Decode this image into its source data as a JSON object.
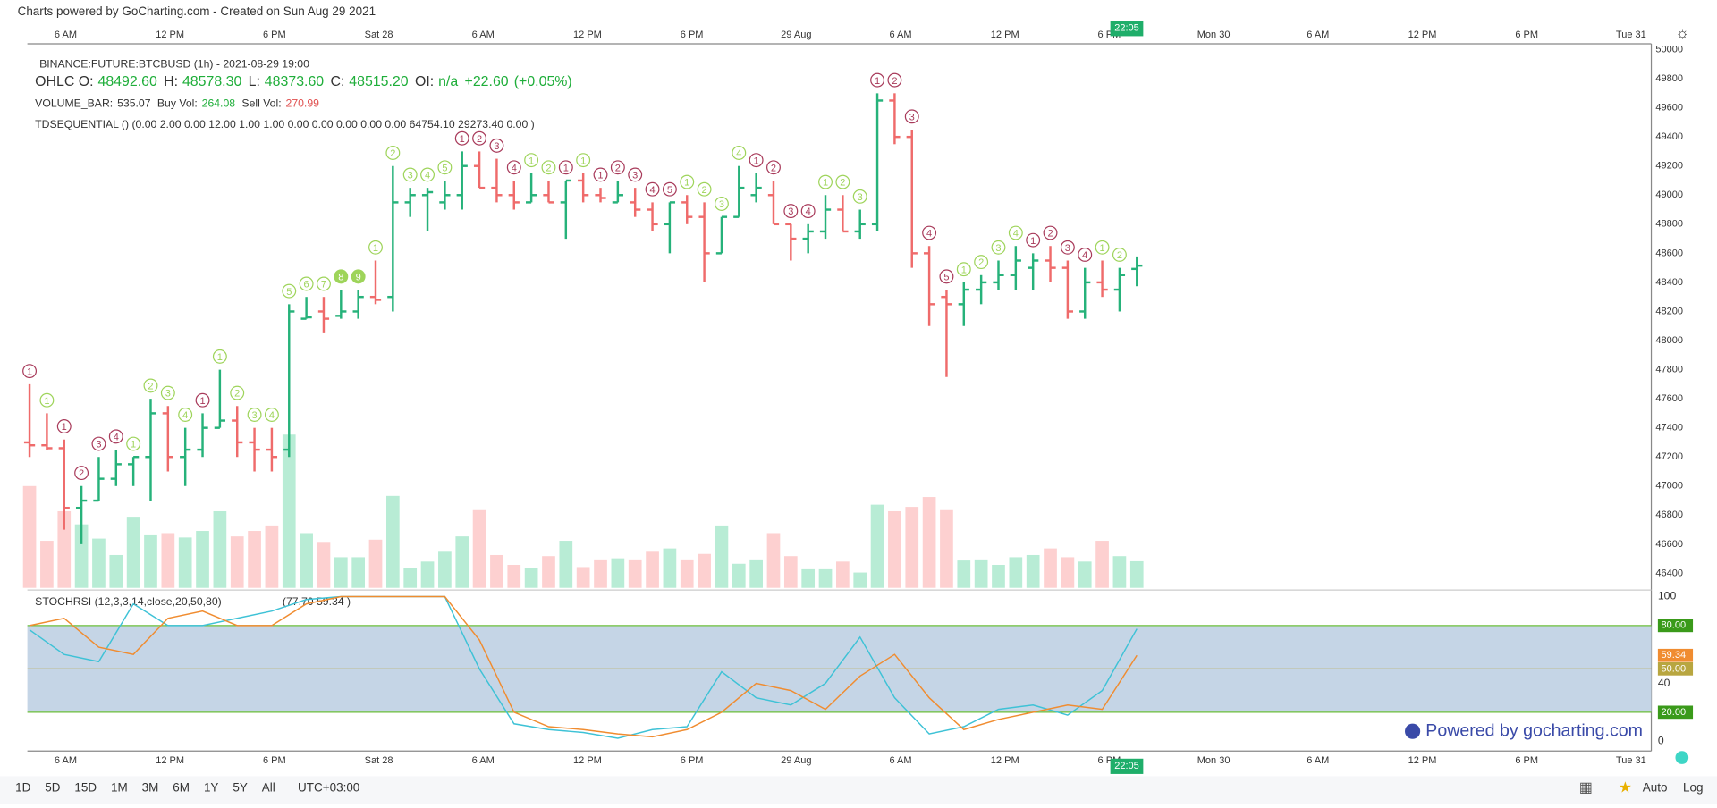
{
  "header": {
    "title": "Charts powered by GoCharting.com - Created on Sun Aug 29 2021"
  },
  "time_labels": [
    "6 AM",
    "12 PM",
    "6 PM",
    "Sat 28",
    "6 AM",
    "12 PM",
    "6 PM",
    "29 Aug",
    "6 AM",
    "12 PM",
    "6 PM",
    "Mon 30",
    "6 AM",
    "12 PM",
    "6 PM",
    "Tue 31"
  ],
  "time_badge": "22:05",
  "legend": {
    "symbol": "BINANCE:FUTURE:BTCBUSD (1h) - 2021-08-29 19:00",
    "ohlc": [
      [
        "OHLC O:",
        "48492.60"
      ],
      [
        "H:",
        "48578.30"
      ],
      [
        "L:",
        "48373.60"
      ],
      [
        "C:",
        "48515.20"
      ],
      [
        "OI:",
        "n/a"
      ]
    ],
    "change": [
      "+22.60",
      "(+0.05%)"
    ],
    "volume": [
      [
        "VOLUME_BAR:",
        "535.07"
      ],
      [
        "Buy Vol:",
        "264.08"
      ],
      [
        "Sell Vol:",
        "270.99"
      ]
    ],
    "td": "TDSEQUENTIAL () (0.00 2.00 0.00 12.00 1.00 1.00 0.00 0.00 0.00 0.00 0.00 64754.10 29273.40 0.00 )",
    "stoch": "STOCHRSI (12,3,3,14,close,20,50,80)",
    "stoch_values": "(77.70 59.34 )"
  },
  "price_chart": {
    "type": "ohlc",
    "ylim": [
      46300,
      50040
    ],
    "yticks": [
      46400,
      46600,
      46800,
      47000,
      47200,
      47400,
      47600,
      47800,
      48000,
      48200,
      48400,
      48600,
      48800,
      49000,
      49200,
      49400,
      49600,
      49800,
      50000
    ],
    "bars": [
      [
        47300,
        47700,
        47200,
        47280
      ],
      [
        47280,
        47500,
        47250,
        47260
      ],
      [
        47260,
        47320,
        46700,
        46850
      ],
      [
        46850,
        47000,
        46600,
        46900
      ],
      [
        46900,
        47200,
        46900,
        47050
      ],
      [
        47050,
        47250,
        47000,
        47150
      ],
      [
        47150,
        47200,
        47000,
        47200
      ],
      [
        47200,
        47600,
        46900,
        47500
      ],
      [
        47500,
        47550,
        47100,
        47200
      ],
      [
        47200,
        47400,
        47000,
        47250
      ],
      [
        47250,
        47500,
        47200,
        47400
      ],
      [
        47400,
        47800,
        47400,
        47450
      ],
      [
        47450,
        47550,
        47200,
        47300
      ],
      [
        47300,
        47400,
        47100,
        47250
      ],
      [
        47250,
        47400,
        47100,
        47200
      ],
      [
        47250,
        48250,
        47200,
        48200
      ],
      [
        48150,
        48300,
        48150,
        48160
      ],
      [
        48200,
        48300,
        48050,
        48150
      ],
      [
        48170,
        48350,
        48150,
        48200
      ],
      [
        48200,
        48350,
        48150,
        48300
      ],
      [
        48300,
        48550,
        48250,
        48280
      ],
      [
        48300,
        49200,
        48200,
        48950
      ],
      [
        48950,
        49050,
        48850,
        49000
      ],
      [
        49000,
        49050,
        48750,
        49020
      ],
      [
        48950,
        49100,
        48900,
        49000
      ],
      [
        49000,
        49300,
        48900,
        49200
      ],
      [
        49200,
        49300,
        49050,
        49050
      ],
      [
        49050,
        49250,
        48950,
        49000
      ],
      [
        49000,
        49100,
        48900,
        48950
      ],
      [
        48950,
        49150,
        48950,
        49000
      ],
      [
        49000,
        49100,
        48950,
        48950
      ],
      [
        48950,
        49100,
        48700,
        49100
      ],
      [
        49100,
        49150,
        48950,
        49000
      ],
      [
        49000,
        49050,
        48950,
        48980
      ],
      [
        48950,
        49100,
        48950,
        49000
      ],
      [
        48950,
        49050,
        48850,
        48900
      ],
      [
        48900,
        48950,
        48750,
        48800
      ],
      [
        48800,
        48950,
        48600,
        48950
      ],
      [
        48950,
        49000,
        48800,
        48850
      ],
      [
        48850,
        48950,
        48400,
        48600
      ],
      [
        48600,
        48850,
        48600,
        48850
      ],
      [
        48850,
        49200,
        48850,
        49050
      ],
      [
        49000,
        49150,
        48950,
        49050
      ],
      [
        49000,
        49100,
        48800,
        48800
      ],
      [
        48800,
        48800,
        48550,
        48700
      ],
      [
        48700,
        48800,
        48600,
        48750
      ],
      [
        48750,
        49000,
        48700,
        48900
      ],
      [
        48900,
        49000,
        48750,
        48750
      ],
      [
        48750,
        48900,
        48700,
        48800
      ],
      [
        48800,
        49700,
        48750,
        49650
      ],
      [
        49650,
        49700,
        49350,
        49400
      ],
      [
        49400,
        49450,
        48500,
        48600
      ],
      [
        48600,
        48650,
        48100,
        48250
      ],
      [
        48300,
        48350,
        47750,
        48250
      ],
      [
        48250,
        48400,
        48100,
        48350
      ],
      [
        48350,
        48450,
        48250,
        48400
      ],
      [
        48400,
        48550,
        48350,
        48450
      ],
      [
        48450,
        48650,
        48350,
        48550
      ],
      [
        48500,
        48600,
        48350,
        48550
      ],
      [
        48550,
        48650,
        48400,
        48500
      ],
      [
        48500,
        48550,
        48150,
        48200
      ],
      [
        48200,
        48500,
        48150,
        48400
      ],
      [
        48400,
        48550,
        48300,
        48350
      ],
      [
        48350,
        48500,
        48200,
        48450
      ],
      [
        48492.6,
        48578.3,
        48373.6,
        48515.2
      ]
    ],
    "volumes": [
      2046,
      946,
      1540,
      1276,
      990,
      660,
      1430,
      1056,
      1100,
      1012,
      1144,
      1540,
      1034,
      1144,
      1254,
      3080,
      1100,
      924,
      616,
      616,
      968,
      1848,
      396,
      528,
      726,
      1034,
      1562,
      660,
      462,
      396,
      638,
      946,
      418,
      572,
      594,
      572,
      726,
      792,
      572,
      682,
      1254,
      484,
      572,
      1100,
      638,
      374,
      374,
      528,
      308,
      1672,
      1540,
      1628,
      1826,
      1562,
      550,
      572,
      462,
      616,
      660,
      792,
      616,
      528,
      946,
      638,
      535.07
    ],
    "td_counts": [
      [
        1,
        "s"
      ],
      [
        1,
        "b"
      ],
      [
        1,
        "s"
      ],
      [
        2,
        "s"
      ],
      [
        3,
        "s"
      ],
      [
        4,
        "s"
      ],
      [
        1,
        "b"
      ],
      [
        2,
        "b"
      ],
      [
        3,
        "b"
      ],
      [
        4,
        "b"
      ],
      [
        1,
        "s"
      ],
      [
        1,
        "b"
      ],
      [
        2,
        "b"
      ],
      [
        3,
        "b"
      ],
      [
        4,
        "b"
      ],
      [
        5,
        "b"
      ],
      [
        6,
        "b"
      ],
      [
        7,
        "b"
      ],
      [
        8,
        "p"
      ],
      [
        9,
        "p"
      ],
      [
        1,
        "b"
      ],
      [
        2,
        "b"
      ],
      [
        3,
        "b"
      ],
      [
        4,
        "b"
      ],
      [
        5,
        "b"
      ],
      [
        1,
        "s"
      ],
      [
        2,
        "s"
      ],
      [
        3,
        "s"
      ],
      [
        4,
        "s"
      ],
      [
        1,
        "b"
      ],
      [
        2,
        "b"
      ],
      [
        1,
        "s"
      ],
      [
        1,
        "b"
      ],
      [
        1,
        "s"
      ],
      [
        2,
        "s"
      ],
      [
        3,
        "s"
      ],
      [
        4,
        "s"
      ],
      [
        5,
        "s"
      ],
      [
        1,
        "b"
      ],
      [
        2,
        "b"
      ],
      [
        3,
        "b"
      ],
      [
        4,
        "b"
      ],
      [
        1,
        "s"
      ],
      [
        2,
        "s"
      ],
      [
        3,
        "s"
      ],
      [
        4,
        "s"
      ],
      [
        1,
        "b"
      ],
      [
        2,
        "b"
      ],
      [
        3,
        "b"
      ],
      [
        1,
        "s"
      ],
      [
        2,
        "s"
      ],
      [
        3,
        "s"
      ],
      [
        4,
        "s"
      ],
      [
        5,
        "s"
      ],
      [
        1,
        "b"
      ],
      [
        2,
        "b"
      ],
      [
        3,
        "b"
      ],
      [
        4,
        "b"
      ],
      [
        1,
        "s"
      ],
      [
        2,
        "s"
      ],
      [
        3,
        "s"
      ],
      [
        4,
        "s"
      ],
      [
        1,
        "b"
      ],
      [
        2,
        "b"
      ]
    ],
    "colors": {
      "up": "#26b27a",
      "down": "#ef6b6b",
      "vol_up": "#b8ecd5",
      "vol_down": "#fdd0d0",
      "buy": "#9ed45a",
      "sell": "#a83a5a"
    }
  },
  "stoch_chart": {
    "type": "line",
    "ylim": [
      0,
      100
    ],
    "yticks": [
      0,
      40,
      100
    ],
    "bands": [
      20,
      50,
      80
    ],
    "band_labels": [
      "20.00",
      "50.00",
      "80.00"
    ],
    "last_d_label": "59.34",
    "series": [
      {
        "name": "K",
        "color": "#3ec2d6",
        "values": [
          77,
          60,
          55,
          95,
          80,
          80,
          85,
          90,
          98,
          100,
          100,
          100,
          100,
          50,
          12,
          8,
          6,
          2,
          8,
          10,
          48,
          30,
          25,
          40,
          72,
          30,
          5,
          10,
          22,
          25,
          18,
          35,
          77.7
        ]
      },
      {
        "name": "D",
        "color": "#f08c30",
        "values": [
          80,
          85,
          65,
          60,
          85,
          90,
          80,
          80,
          95,
          100,
          100,
          100,
          100,
          70,
          20,
          10,
          8,
          5,
          3,
          8,
          20,
          40,
          35,
          22,
          45,
          60,
          30,
          8,
          15,
          20,
          25,
          22,
          59.34
        ]
      }
    ]
  },
  "footer": {
    "ranges": [
      "1D",
      "5D",
      "15D",
      "1M",
      "3M",
      "6M",
      "1Y",
      "5Y",
      "All"
    ],
    "timezone": "UTC+03:00",
    "right": [
      "Auto",
      "Log"
    ],
    "powered": "Powered by gocharting.com"
  }
}
